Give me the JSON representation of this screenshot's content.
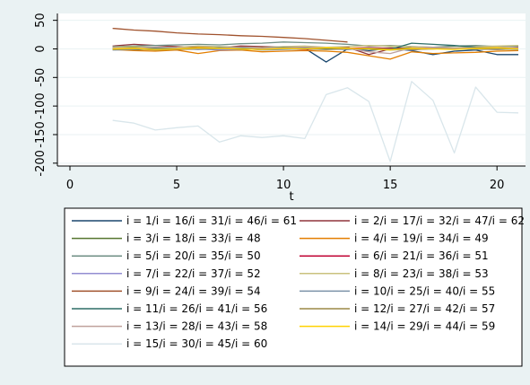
{
  "chart_data": {
    "type": "line",
    "xlabel": "t",
    "ylabel": "",
    "xlim": [
      0,
      21
    ],
    "ylim": [
      -205,
      62
    ],
    "xticks": [
      0,
      5,
      10,
      15,
      20
    ],
    "yticks": [
      {
        "value": 50,
        "label": "50"
      },
      {
        "value": 0,
        "label": "0"
      },
      {
        "value": -50,
        "label": "-50"
      },
      {
        "value": -100,
        "label": "-100"
      },
      {
        "value": -150,
        "label": "-150"
      },
      {
        "value": -200,
        "label": "-200"
      }
    ],
    "grid": true,
    "legend_position": "bottom",
    "x": [
      2,
      3,
      4,
      5,
      6,
      7,
      8,
      9,
      10,
      11,
      12,
      13,
      14,
      15,
      16,
      17,
      18,
      19,
      20,
      21
    ],
    "series": [
      {
        "name": "i = 1/i = 16/i = 31/i = 46/i = 61",
        "color": "#1a476f",
        "values": [
          2,
          -2,
          1,
          0,
          1,
          2,
          -1,
          0,
          2,
          1,
          -23,
          0,
          -3,
          1,
          -3,
          -10,
          -4,
          -2,
          -10,
          -10
        ]
      },
      {
        "name": "i = 2/i = 17/i = 32/i = 47/i = 62",
        "color": "#90353b",
        "values": [
          5,
          8,
          6,
          4,
          3,
          2,
          5,
          4,
          3,
          2,
          1,
          3,
          -10,
          0,
          2,
          3,
          1,
          2,
          1,
          3
        ]
      },
      {
        "name": "i = 3/i = 18/i = 33/i = 48",
        "color": "#55752f",
        "values": [
          1,
          3,
          2,
          1,
          0,
          2,
          1,
          -1,
          2,
          3,
          2,
          1,
          0,
          2,
          1,
          0,
          1,
          2,
          3,
          1
        ]
      },
      {
        "name": "i = 4/i = 19/i = 34/i = 49",
        "color": "#e37e00",
        "values": [
          -1,
          -3,
          -4,
          -2,
          -8,
          -3,
          -2,
          -5,
          -4,
          -3,
          -4,
          -6,
          -12,
          -18,
          -5,
          -8,
          -7,
          -6,
          -4,
          -3
        ]
      },
      {
        "name": "i = 5/i = 20/i = 35/i = 50",
        "color": "#6e8e84",
        "values": [
          4,
          5,
          6,
          7,
          8,
          7,
          9,
          10,
          12,
          11,
          10,
          8,
          5,
          6,
          4,
          3,
          5,
          6,
          4,
          5
        ]
      },
      {
        "name": "i = 6/i = 21/i = 36/i = 51",
        "color": "#c10534",
        "values": [
          2,
          1,
          0,
          -1,
          0,
          1,
          2,
          1,
          0,
          -1,
          0,
          1,
          2,
          1,
          0,
          1,
          2,
          1,
          0,
          1
        ]
      },
      {
        "name": "i = 7/i = 22/i = 37/i = 52",
        "color": "#938dd2",
        "values": [
          0,
          -1,
          1,
          2,
          0,
          -2,
          -1,
          0,
          1,
          2,
          0,
          -1,
          1,
          0,
          -2,
          1,
          2,
          0,
          -1,
          0
        ]
      },
      {
        "name": "i = 8/i = 23/i = 38/i = 53",
        "color": "#cac27e",
        "values": [
          3,
          4,
          2,
          3,
          5,
          4,
          3,
          2,
          4,
          5,
          3,
          4,
          6,
          5,
          4,
          3,
          2,
          4,
          5,
          6
        ]
      },
      {
        "name": "i = 9/i = 24/i = 39/i = 54",
        "color": "#a0522d",
        "values": [
          36,
          33,
          31,
          28,
          26,
          25,
          23,
          22,
          20,
          18,
          15,
          12,
          null,
          null,
          null,
          null,
          null,
          null,
          null,
          null
        ]
      },
      {
        "name": "i = 10/i = 25/i = 40/i = 55",
        "color": "#7b92a8",
        "values": [
          -2,
          -1,
          0,
          1,
          -1,
          0,
          1,
          -2,
          -1,
          0,
          1,
          -1,
          0,
          -2,
          -1,
          0,
          1,
          -1,
          0,
          -1
        ]
      },
      {
        "name": "i = 11/i = 26/i = 41/i = 56",
        "color": "#2d6d66",
        "values": [
          1,
          0,
          2,
          1,
          0,
          3,
          2,
          1,
          3,
          2,
          1,
          0,
          1,
          -1,
          10,
          8,
          6,
          3,
          2,
          1
        ]
      },
      {
        "name": "i = 12/i = 27/i = 42/i = 57",
        "color": "#9c8847",
        "values": [
          -1,
          0,
          -2,
          -1,
          0,
          1,
          -1,
          0,
          1,
          0,
          -1,
          0,
          1,
          0,
          -1,
          0,
          1,
          0,
          -1,
          0
        ]
      },
      {
        "name": "i = 13/i = 28/i = 43/i = 58",
        "color": "#bfa19c",
        "values": [
          2,
          1,
          3,
          2,
          1,
          2,
          3,
          1,
          2,
          3,
          2,
          1,
          -5,
          -8,
          2,
          3,
          1,
          2,
          3,
          2
        ]
      },
      {
        "name": "i = 14/i = 29/i = 44/i = 59",
        "color": "#ffd200",
        "values": [
          0,
          1,
          -1,
          0,
          2,
          1,
          0,
          -1,
          1,
          0,
          2,
          1,
          0,
          -2,
          1,
          0,
          -1,
          1,
          2,
          0
        ]
      },
      {
        "name": "i = 15/i = 30/i = 45/i = 60",
        "color": "#d9e6eb",
        "values": [
          -125,
          -130,
          -142,
          -138,
          -135,
          -163,
          -152,
          -155,
          -152,
          -157,
          -80,
          -68,
          -92,
          -197,
          -57,
          -90,
          -182,
          -67,
          -111,
          -112
        ]
      }
    ]
  }
}
